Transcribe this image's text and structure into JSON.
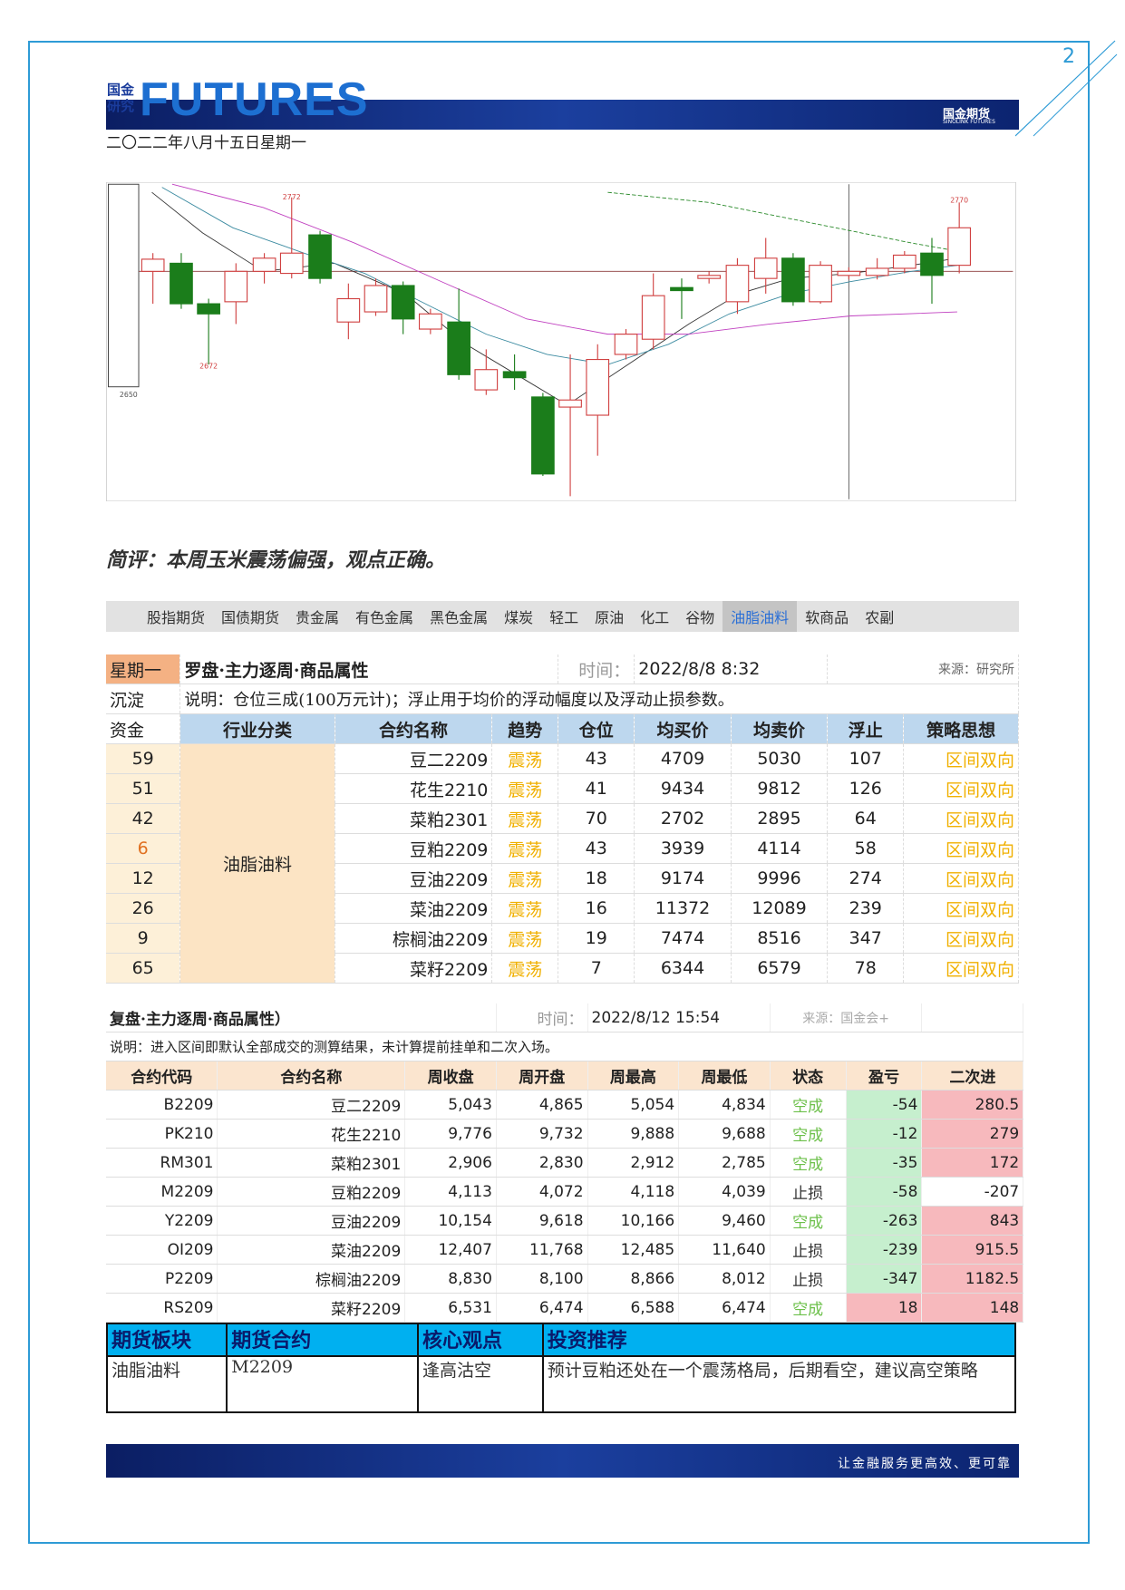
{
  "header": {
    "page_number": "2",
    "logo_cn": "国金研究",
    "logo_en": "FUTURES",
    "brand": "国金期货",
    "brand_en": "SINOLINK FUTURES",
    "date": "二〇二二年八月十五日星期一"
  },
  "kline": {
    "labels": [
      "2772",
      "2672",
      "2770",
      "2650"
    ]
  },
  "comment": "简评：本周玉米震荡偏强，观点正确。",
  "tabs": {
    "items": [
      "股指期货",
      "国债期货",
      "贵金属",
      "有色金属",
      "黑色金属",
      "煤炭",
      "轻工",
      "原油",
      "化工",
      "谷物",
      "油脂油料",
      "软商品",
      "农副"
    ],
    "active": 10
  },
  "compass": {
    "day": "星期一",
    "title": "罗盘·主力逐周·商品属性",
    "time_label": "时间：",
    "time": "2022/8/8 8:32",
    "source": "来源：研究所",
    "row2_label": "沉淀",
    "note": "说明：仓位三成(100万元计)；浮止用于均价的浮动幅度以及浮动止损参数。",
    "capital_label": "资金",
    "columns": [
      "行业分类",
      "合约名称",
      "趋势",
      "仓位",
      "均买价",
      "均卖价",
      "浮止",
      "策略思想"
    ],
    "sector": "油脂油料",
    "rows": [
      [
        59,
        "豆二2209",
        "震荡",
        43,
        4709,
        5030,
        107,
        "区间双向"
      ],
      [
        51,
        "花生2210",
        "震荡",
        41,
        9434,
        9812,
        126,
        "区间双向"
      ],
      [
        42,
        "菜粕2301",
        "震荡",
        70,
        2702,
        2895,
        64,
        "区间双向"
      ],
      [
        6,
        "豆粕2209",
        "震荡",
        43,
        3939,
        4114,
        58,
        "区间双向"
      ],
      [
        12,
        "豆油2209",
        "震荡",
        18,
        9174,
        9996,
        274,
        "区间双向"
      ],
      [
        26,
        "菜油2209",
        "震荡",
        16,
        11372,
        12089,
        239,
        "区间双向"
      ],
      [
        9,
        "棕榈油2209",
        "震荡",
        19,
        7474,
        8516,
        347,
        "区间双向"
      ],
      [
        65,
        "菜籽2209",
        "震荡",
        7,
        6344,
        6579,
        78,
        "区间双向"
      ]
    ]
  },
  "review": {
    "title": "复盘·主力逐周·商品属性）",
    "time_label": "时间：",
    "time": "2022/8/12 15:54",
    "source": "来源：国金会+",
    "note": "说明：进入区间即默认全部成交的测算结果，未计算提前挂单和二次入场。",
    "columns": [
      "合约代码",
      "合约名称",
      "周收盘",
      "周开盘",
      "周最高",
      "周最低",
      "状态",
      "盈亏",
      "二次进"
    ],
    "status_colors": {
      "空成": "#6cc04a",
      "止损": "#333333"
    },
    "rows": [
      [
        "B2209",
        "豆二2209",
        "5,043",
        "4,865",
        "5,054",
        "4,834",
        "空成",
        -54,
        280.5
      ],
      [
        "PK210",
        "花生2210",
        "9,776",
        "9,732",
        "9,888",
        "9,688",
        "空成",
        -12,
        279
      ],
      [
        "RM301",
        "菜粕2301",
        "2,906",
        "2,830",
        "2,912",
        "2,785",
        "空成",
        -35,
        172
      ],
      [
        "M2209",
        "豆粕2209",
        "4,113",
        "4,072",
        "4,118",
        "4,039",
        "止损",
        -58,
        -207
      ],
      [
        "Y2209",
        "豆油2209",
        "10,154",
        "9,618",
        "10,166",
        "9,460",
        "空成",
        -263,
        843
      ],
      [
        "OI209",
        "菜油2209",
        "12,407",
        "11,768",
        "12,485",
        "11,640",
        "止损",
        -239,
        915.5
      ],
      [
        "P2209",
        "棕榈油2209",
        "8,830",
        "8,100",
        "8,866",
        "8,012",
        "止损",
        -347,
        1182.5
      ],
      [
        "RS209",
        "菜籽2209",
        "6,531",
        "6,474",
        "6,588",
        "6,474",
        "空成",
        18,
        148
      ]
    ]
  },
  "summary": {
    "columns": [
      "期货板块",
      "期货合约",
      "核心观点",
      "投资推荐"
    ],
    "row": [
      "油脂油料",
      "M2209",
      "逢高沽空",
      "预计豆粕还处在一个震荡格局，后期看空，建议高空策略"
    ]
  },
  "footer": {
    "slogan": "让金融服务更高效、更可靠"
  }
}
